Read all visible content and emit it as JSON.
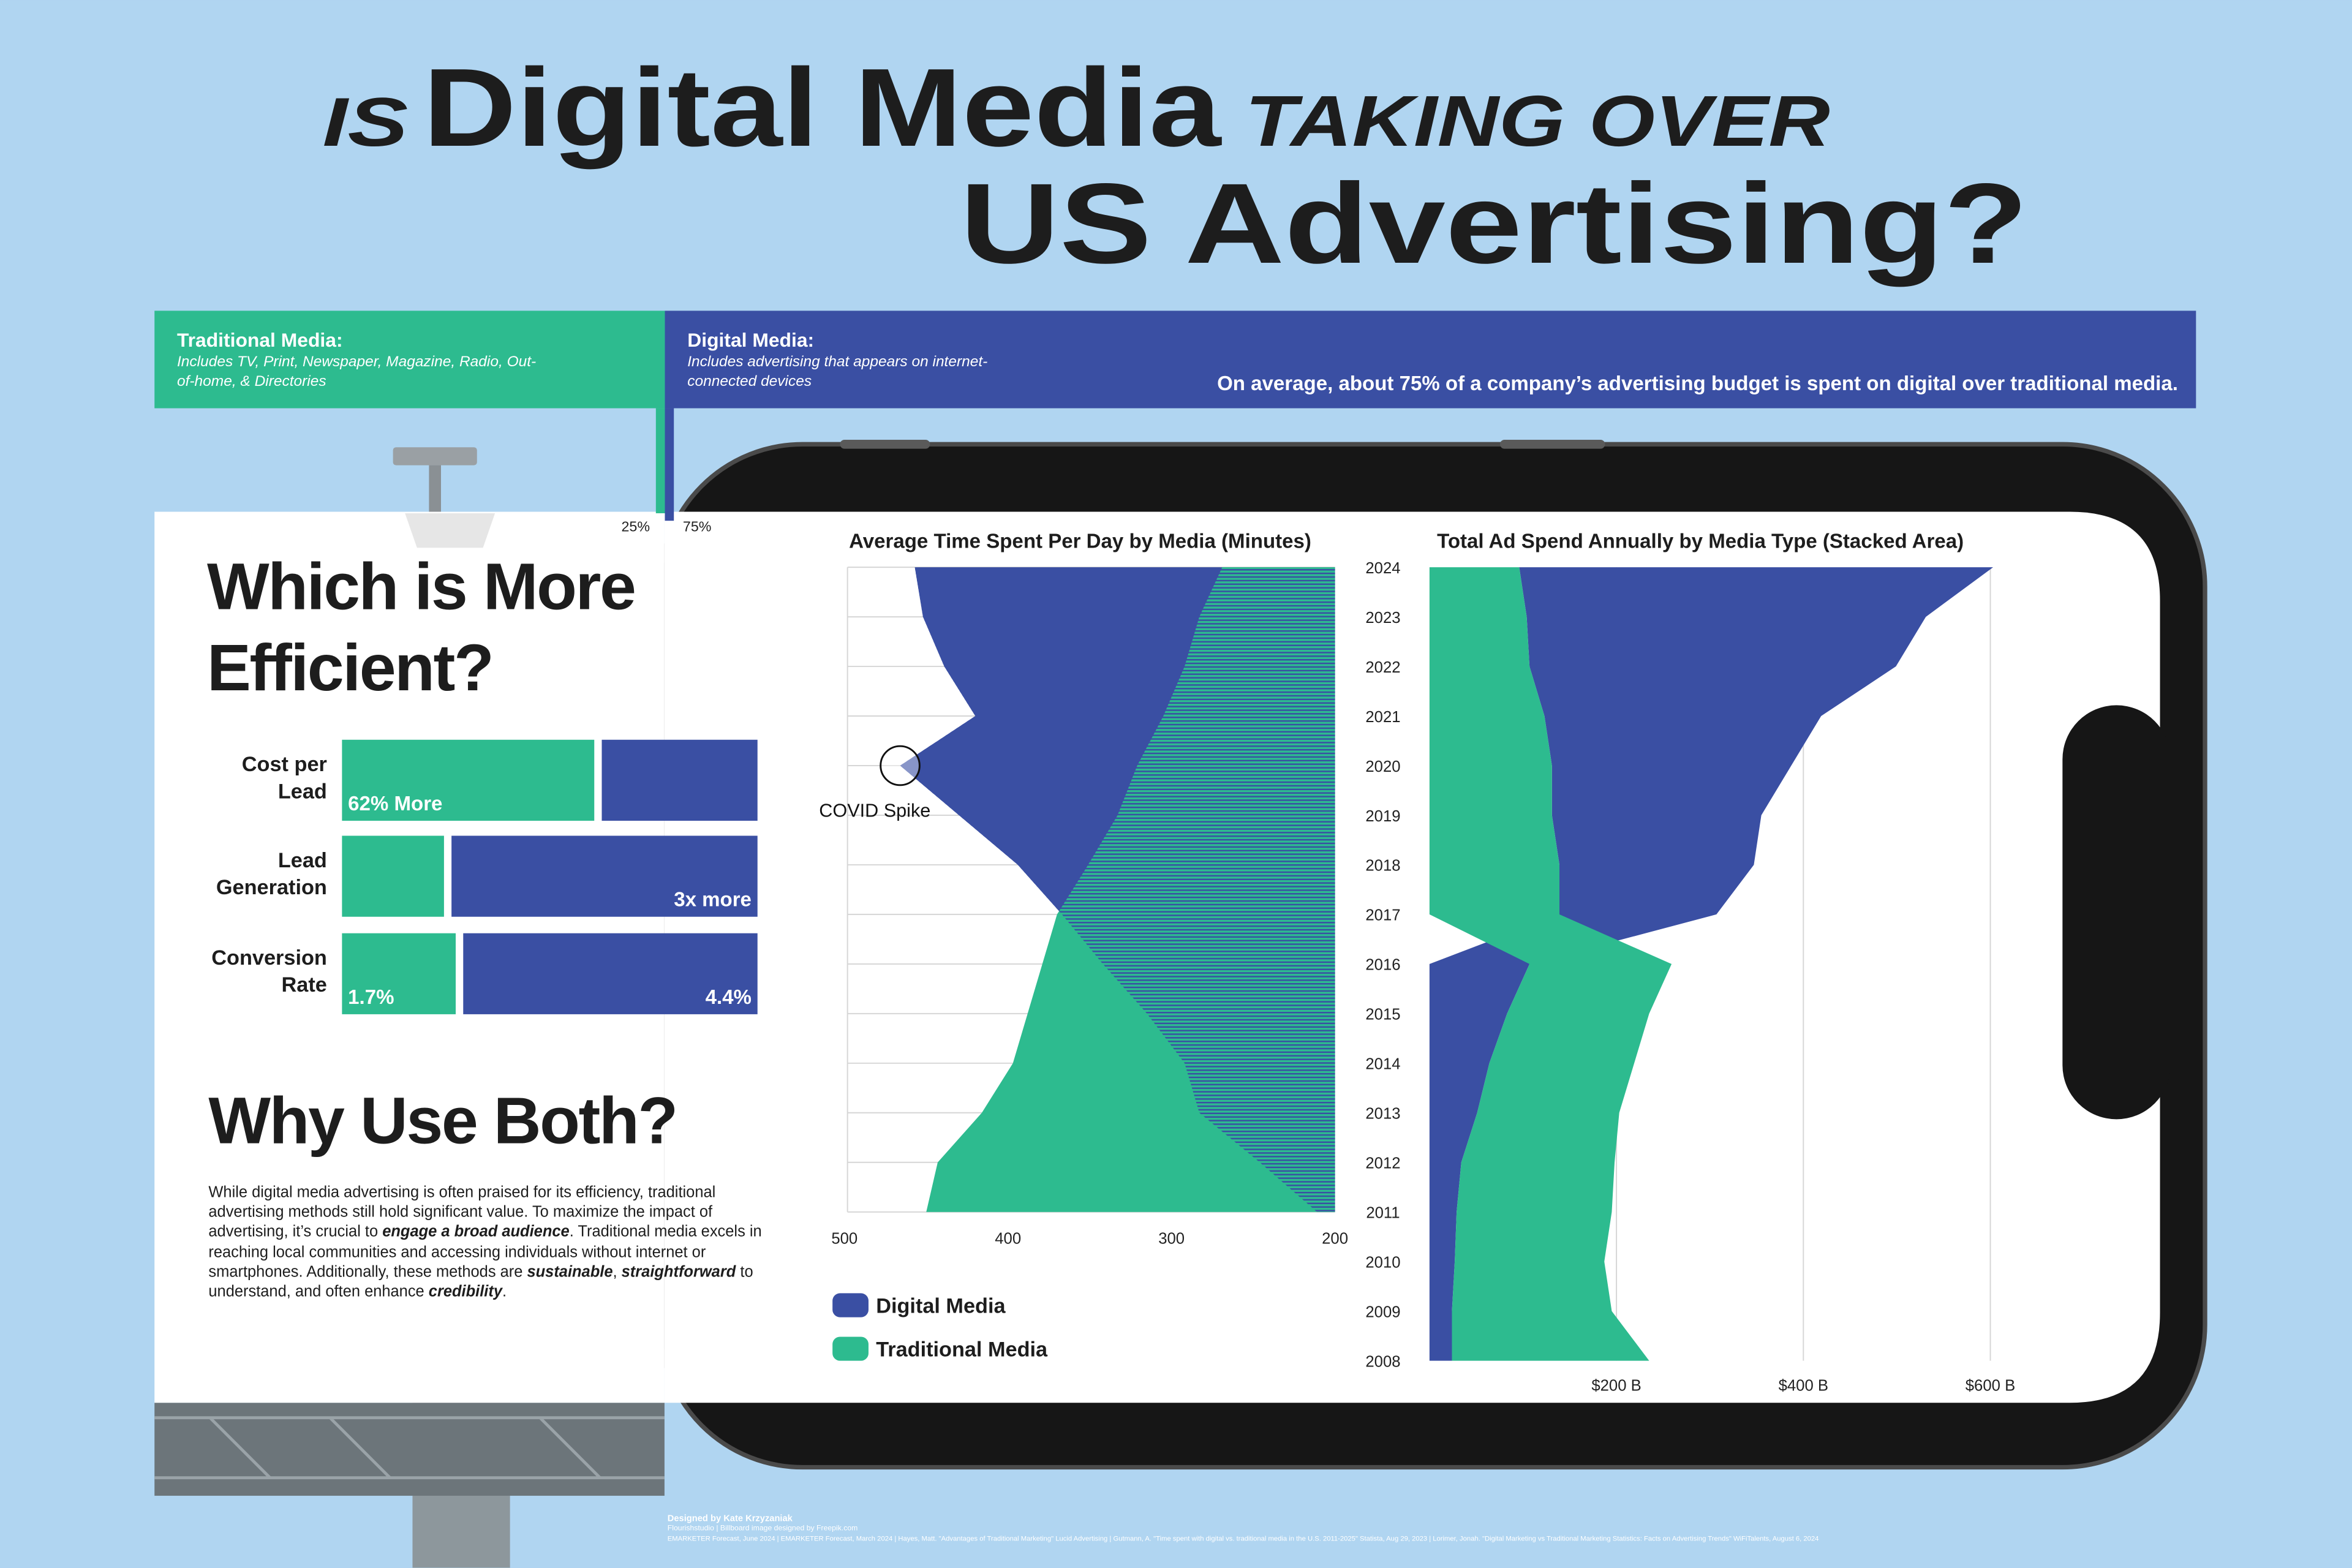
{
  "header": {
    "prefix": "IS",
    "highlight": "Digital Media",
    "middle": "TAKING OVER",
    "tail": "US Advertising?"
  },
  "why_use_both": {
    "heading": "Why Use Both?",
    "runs": [
      {
        "text": "While digital media advertising is often praised for its efficiency, traditional advertising methods still hold significant value.  To maximize the impact of advertising, it’s crucial to ",
        "strong": false
      },
      {
        "text": "engage a broad audience",
        "strong": true
      },
      {
        "text": ". Traditional media excels in reaching local communities and accessing individuals without internet or smartphones. Additionally, these methods are ",
        "strong": false
      },
      {
        "text": "sustainable",
        "strong": true
      },
      {
        "text": ", ",
        "strong": false
      },
      {
        "text": "straightforward",
        "strong": true
      },
      {
        "text": " to understand, and often enhance ",
        "strong": false
      },
      {
        "text": "credibility",
        "strong": true
      },
      {
        "text": ".",
        "strong": false
      }
    ]
  },
  "footer": {
    "designer": "Designed by Kate Krzyzaniak",
    "credits": "Flourishstudio | Billboard image designed by Freepik.com",
    "sources": "EMARKETER Forecast, June 2024 | EMARKETER Forecast, March 2024 | Hayes, Matt. \"Advantages of Traditional Marketing\" Lucid Advertising | Gutmann, A. \"Time spent with digital vs. traditional media in the U.S. 2011-2025\" Statista, Aug 29, 2023 | Lorimer, Jonah. \"Digital Marketing vs Traditional Marketing Statistics: Facts on Advertising Trends\" WiFiTalents, August 6, 2024"
  },
  "chart_data": [
    {
      "type": "split",
      "note": "On average, about 75% of a company’s advertising budget is spent on digital over traditional media.",
      "series": [
        {
          "name": "Traditional Media:",
          "description": "Includes TV, Print, Newspaper, Magazine, Radio, Out-of-home, & Directories",
          "color": "#2dbb8f",
          "values": [
            25
          ],
          "value_labels": [
            "25%"
          ]
        },
        {
          "name": "Digital Media:",
          "description": "Includes advertising that appears on internet-connected devices",
          "color": "#3a4fa3",
          "values": [
            75
          ],
          "value_labels": [
            "75%"
          ]
        }
      ]
    },
    {
      "type": "overlap-area",
      "title": "Average Time Spent Per Day by Media (Minutes)",
      "categories": [
        2011,
        2012,
        2013,
        2014,
        2015,
        2016,
        2017,
        2018,
        2019,
        2020,
        2021,
        2022,
        2023,
        2024
      ],
      "series": [
        {
          "name": "Digital Media",
          "color": "#3a4fa3",
          "values": [
            211,
            246,
            283,
            292,
            315,
            342,
            367,
            394,
            430,
            466,
            420,
            439,
            452,
            457
          ]
        },
        {
          "name": "Traditional Media",
          "color": "#2dbb8f",
          "values": [
            450,
            443,
            416,
            397,
            388,
            379,
            370,
            351,
            333,
            321,
            305,
            292,
            283,
            269
          ]
        }
      ],
      "xlim": [
        500,
        200
      ],
      "xticks": [
        500,
        400,
        300,
        200
      ],
      "grid": true,
      "annotations": [
        {
          "text": "COVID Spike",
          "category": 2020
        }
      ]
    },
    {
      "type": "stacked-area",
      "title": "Total Ad Spend Annually by Media Type (Stacked Area)",
      "categories": [
        2008,
        2009,
        2010,
        2011,
        2012,
        2013,
        2014,
        2015,
        2016,
        2017,
        2018,
        2019,
        2020,
        2021,
        2022,
        2023,
        2024
      ],
      "series": [
        {
          "color": "#3a4fa3",
          "values": [
            24,
            24,
            27,
            29,
            34,
            51,
            64,
            83,
            107,
            168,
            208,
            224,
            256,
            296,
            392,
            427,
            507
          ]
        },
        {
          "color": "#2dbb8f",
          "values": [
            211,
            171,
            160,
            166,
            164,
            152,
            155,
            152,
            152,
            139,
            139,
            131,
            131,
            123,
            107,
            104,
            96
          ]
        }
      ],
      "xlim": [
        0,
        605
      ],
      "xticks": [
        {
          "value": 200,
          "label": "$200 B"
        },
        {
          "value": 400,
          "label": "$400 B"
        },
        {
          "value": 600,
          "label": "$600 B"
        }
      ],
      "grid": true
    },
    {
      "type": "split-bar",
      "title": "Which is More Efficient?",
      "categories": [
        "Cost per Lead",
        "Lead Generation",
        "Conversion Rate"
      ],
      "series": [
        {
          "color": "#2dbb8f",
          "values": [
            1.62,
            1,
            1.7
          ],
          "value_labels": [
            "62% More",
            null,
            "1.7%"
          ]
        },
        {
          "color": "#3a4fa3",
          "values": [
            1,
            3,
            4.4
          ],
          "value_labels": [
            null,
            "3x more",
            "4.4%"
          ]
        }
      ]
    }
  ]
}
